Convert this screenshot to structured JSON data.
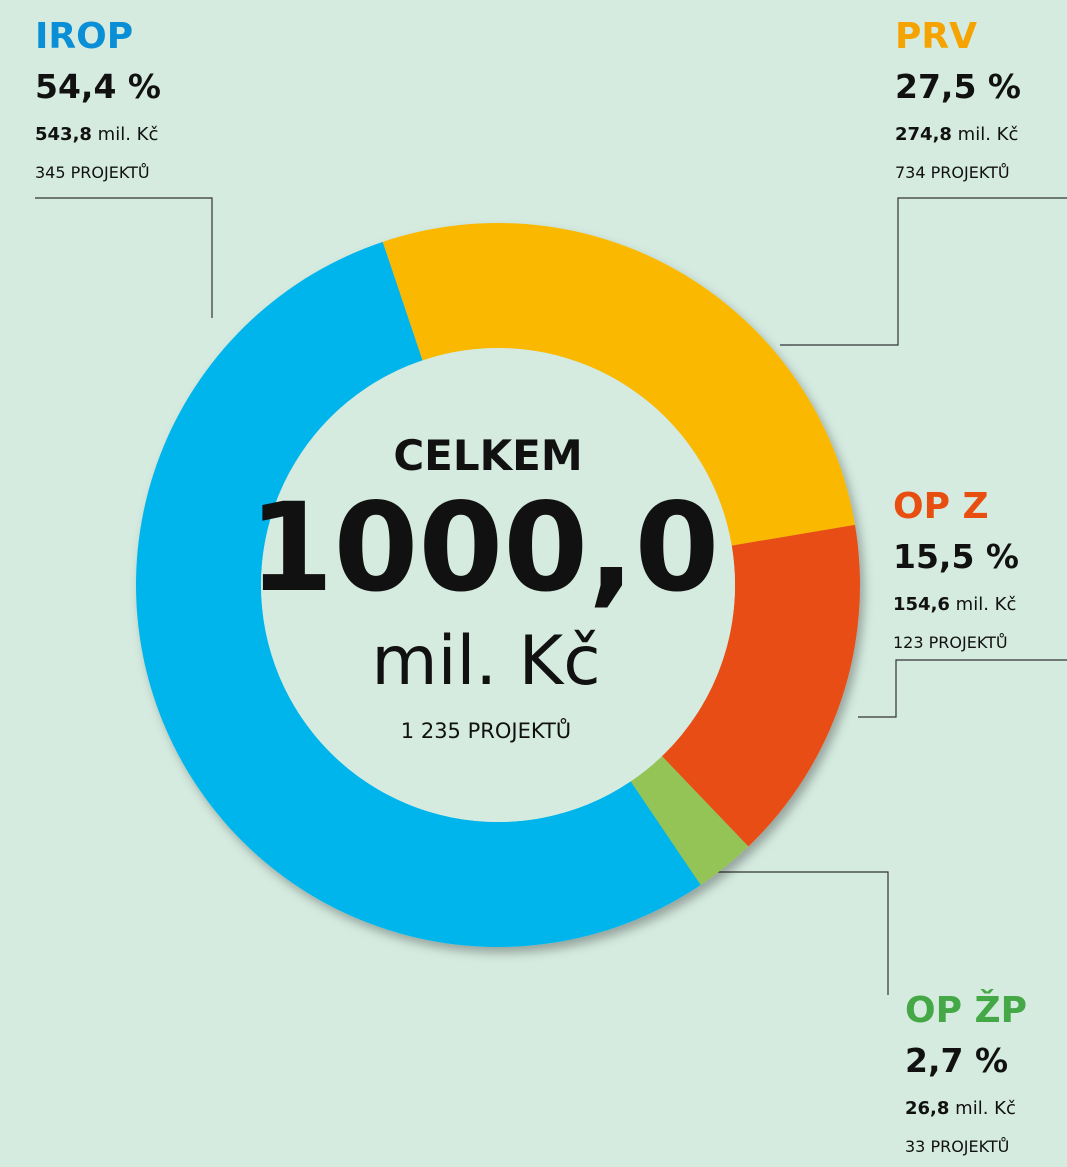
{
  "chart_data": {
    "type": "donut",
    "categories": [
      "IROP",
      "PRV",
      "OP Z",
      "OP ŽP"
    ],
    "values": [
      54.4,
      27.5,
      15.5,
      2.7
    ],
    "value_labels": [
      "54,4 %",
      "27,5 %",
      "15,5 %",
      "2,7 %"
    ],
    "colors": [
      "#00b5ec",
      "#fab903",
      "#e84e12",
      "#94c356"
    ],
    "label_colors": [
      "#0a8fd6",
      "#f5a300",
      "#e84e0f",
      "#44a846"
    ],
    "amounts": [
      543.8,
      274.8,
      154.6,
      26.8
    ],
    "amount_labels": [
      "543,8",
      "274,8",
      "154,6",
      "26,8"
    ],
    "amount_unit": "mil. Kč",
    "project_labels": [
      "345 PROJEKTŮ",
      "734 PROJEKTŮ",
      "123 PROJEKTŮ",
      "33 PROJEKTŮ"
    ],
    "center_title": "CELKEM",
    "total_label": "1000,0",
    "total_unit": "mil. Kč",
    "total_projects": "1 235 PROJEKTŮ"
  }
}
